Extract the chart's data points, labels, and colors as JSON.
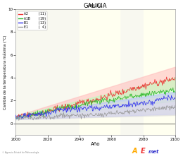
{
  "title": "GALICIA",
  "subtitle": "ANUAL",
  "xlabel": "Año",
  "ylabel": "Cambio de la temperatura máxima (°C)",
  "xlim": [
    2000,
    2100
  ],
  "ylim": [
    -1,
    10
  ],
  "yticks": [
    0,
    2,
    4,
    6,
    8,
    10
  ],
  "xticks": [
    2000,
    2020,
    2040,
    2060,
    2080,
    2100
  ],
  "scenarios": [
    {
      "name": "A2",
      "count": 11,
      "color": "#EE3333",
      "shade": "#FFBBBB"
    },
    {
      "name": "A1B",
      "count": 19,
      "color": "#33BB33",
      "shade": "#BBFFBB"
    },
    {
      "name": "B1",
      "count": 13,
      "color": "#3333EE",
      "shade": "#BBBBFF"
    },
    {
      "name": "E1",
      "count": 4,
      "color": "#999999",
      "shade": "#DDDDDD"
    }
  ],
  "highlight_regions": [
    {
      "xstart": 2040,
      "xend": 2065,
      "color": "#FFFFF0"
    },
    {
      "xstart": 2080,
      "xend": 2100,
      "color": "#FFFFF0"
    }
  ],
  "background_color": "#FFFFFF",
  "plot_bg": "#F8F8F0",
  "zero_line_color": "#333333",
  "footer_text": "© Agencia Estatal de Meteorología",
  "seed": 42
}
